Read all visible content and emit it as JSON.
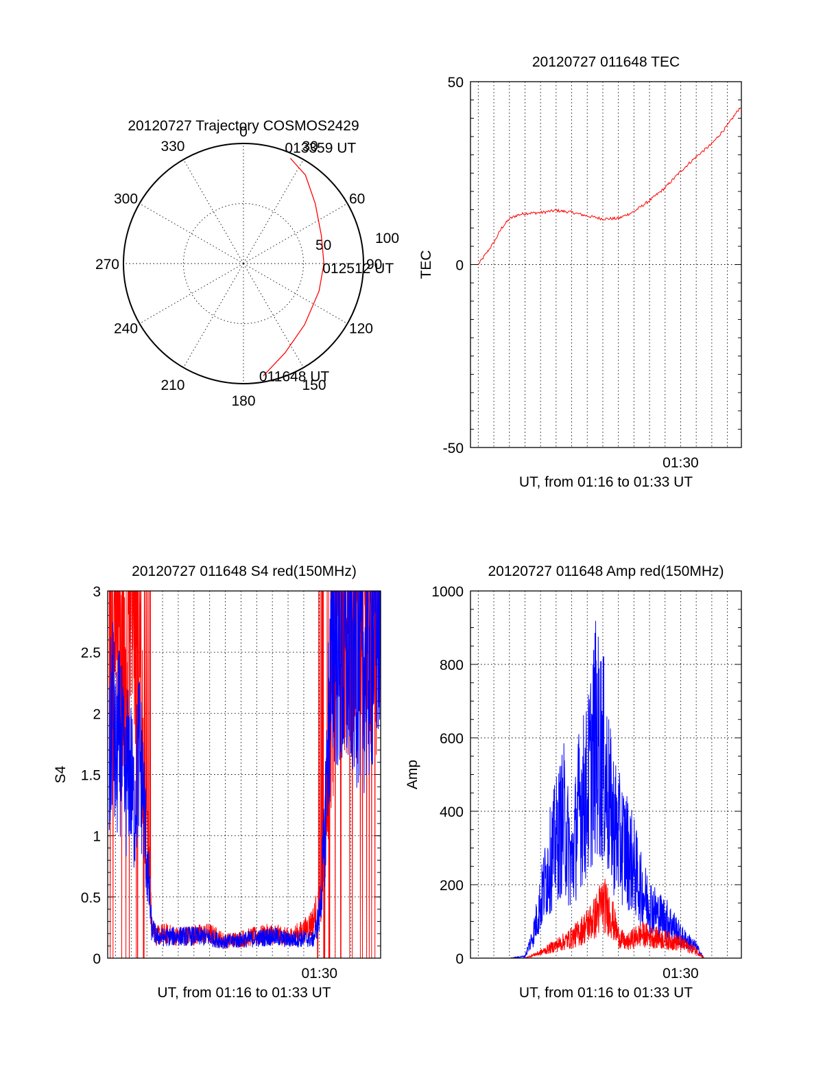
{
  "colors": {
    "red": "#ff0000",
    "blue": "#0000ff",
    "axis": "#000000"
  },
  "chart_data": [
    {
      "type": "polar",
      "title": "20120727 Trajectory COSMOS2429",
      "azimuth_labels": [
        "0",
        "30",
        "60",
        "90",
        "120",
        "150",
        "180",
        "210",
        "240",
        "270",
        "300",
        "330"
      ],
      "elevation_labels": [
        "50",
        "100"
      ],
      "grid": true,
      "series": [
        {
          "color": "#ff0000",
          "points": [
            {
              "az": 170,
              "r": 95
            },
            {
              "az": 155,
              "r": 82
            },
            {
              "az": 135,
              "r": 72
            },
            {
              "az": 110,
              "r": 67
            },
            {
              "az": 90,
              "r": 67
            },
            {
              "az": 70,
              "r": 69
            },
            {
              "az": 50,
              "r": 78
            },
            {
              "az": 35,
              "r": 90
            },
            {
              "az": 24,
              "r": 96
            }
          ]
        }
      ],
      "annotations": [
        {
          "text": "013359 UT",
          "az": 24,
          "r": 96
        },
        {
          "text": "012512 UT",
          "az": 90,
          "r": 67
        },
        {
          "text": "011648 UT",
          "az": 170,
          "r": 95
        }
      ]
    },
    {
      "type": "line",
      "title": "20120727 011648 TEC",
      "xlabel": "UT, from 01:16 to 01:33 UT",
      "ylabel": "TEC",
      "xlim": [
        16.5,
        33.9
      ],
      "ylim": [
        -50,
        50
      ],
      "yticks": [
        "50",
        "0",
        "-50"
      ],
      "xticks": [
        {
          "x": 30,
          "label": "01:30"
        }
      ],
      "grid": true,
      "series": [
        {
          "color": "#ff0000",
          "x": [
            17.0,
            17.5,
            18.0,
            18.5,
            19.0,
            19.5,
            20.0,
            21.0,
            22.0,
            23.0,
            24.0,
            25.0,
            26.0,
            27.0,
            28.0,
            29.0,
            30.0,
            31.0,
            32.0,
            33.0,
            33.9
          ],
          "y": [
            0,
            3,
            6,
            10,
            12.5,
            13.5,
            14,
            14.2,
            14.8,
            14.3,
            13.3,
            12.5,
            12.6,
            14.5,
            17.5,
            21,
            25.5,
            29.5,
            33,
            38,
            43.5
          ]
        }
      ]
    },
    {
      "type": "line",
      "title": "20120727 011648 S4 red(150MHz)",
      "xlabel": "UT, from 01:16 to 01:33 UT",
      "ylabel": "S4",
      "xlim": [
        16.5,
        33.9
      ],
      "ylim": [
        0,
        3
      ],
      "yticks": [
        "0",
        "0.5",
        "1",
        "1.5",
        "2",
        "2.5",
        "3"
      ],
      "xticks": [
        {
          "x": 30,
          "label": "01:30"
        }
      ],
      "grid": true,
      "series": [
        {
          "color": "#ff0000",
          "x": [
            16.6,
            16.8,
            17.0,
            17.3,
            17.6,
            17.9,
            18.2,
            18.5,
            18.8,
            19.0,
            19.3,
            19.6,
            20.0,
            21.0,
            22.0,
            23.0,
            24.0,
            25.0,
            26.0,
            27.0,
            28.0,
            29.0,
            29.6,
            30.0,
            30.3,
            30.6,
            31.0,
            31.5,
            32.0,
            33.0,
            33.9
          ],
          "y": [
            2.8,
            3.0,
            2.6,
            3.0,
            2.2,
            3.0,
            2.5,
            3.0,
            1.5,
            0.9,
            0.3,
            0.18,
            0.2,
            0.18,
            0.19,
            0.2,
            0.14,
            0.16,
            0.18,
            0.2,
            0.17,
            0.22,
            0.3,
            0.45,
            0.7,
            1.8,
            2.6,
            3.0,
            2.8,
            3.0,
            3.0
          ]
        },
        {
          "color": "#0000ff",
          "x": [
            16.6,
            16.8,
            17.0,
            17.3,
            17.6,
            17.9,
            18.2,
            18.5,
            18.8,
            19.0,
            19.3,
            19.6,
            20.0,
            21.0,
            22.0,
            23.0,
            24.0,
            25.0,
            26.0,
            27.0,
            28.0,
            29.0,
            29.6,
            30.0,
            30.3,
            30.6,
            31.0,
            31.5,
            32.0,
            33.0,
            33.9
          ],
          "y": [
            1.5,
            2.1,
            1.6,
            1.8,
            1.4,
            1.6,
            1.2,
            1.7,
            1.3,
            0.8,
            0.25,
            0.18,
            0.17,
            0.18,
            0.18,
            0.17,
            0.13,
            0.15,
            0.16,
            0.18,
            0.15,
            0.16,
            0.15,
            0.35,
            0.9,
            2.0,
            2.8,
            2.4,
            2.6,
            2.4,
            3.0
          ]
        }
      ]
    },
    {
      "type": "line",
      "title": "20120727 011648 Amp red(150MHz)",
      "xlabel": "UT, from 01:16 to 01:33 UT",
      "ylabel": "Amp",
      "xlim": [
        16.5,
        33.9
      ],
      "ylim": [
        0,
        1000
      ],
      "yticks": [
        "0",
        "200",
        "400",
        "600",
        "800",
        "1000"
      ],
      "xticks": [
        {
          "x": 30,
          "label": "01:30"
        }
      ],
      "grid": true,
      "series": [
        {
          "color": "#0000ff",
          "x": [
            16.5,
            19.0,
            20.0,
            20.5,
            21.0,
            21.5,
            22.0,
            22.5,
            23.0,
            23.5,
            24.0,
            24.5,
            25.0,
            25.5,
            26.0,
            26.5,
            27.0,
            27.5,
            28.0,
            28.5,
            29.0,
            29.5,
            30.0,
            30.5,
            31.0,
            31.5,
            33.9
          ],
          "y": [
            0,
            0,
            5,
            60,
            150,
            250,
            320,
            380,
            250,
            420,
            450,
            600,
            550,
            400,
            330,
            300,
            250,
            180,
            150,
            120,
            110,
            90,
            60,
            45,
            30,
            0,
            0
          ]
        },
        {
          "color": "#ff0000",
          "x": [
            16.5,
            20.0,
            20.5,
            21.0,
            21.5,
            22.0,
            22.5,
            23.0,
            23.5,
            24.0,
            24.5,
            25.0,
            25.5,
            26.0,
            26.5,
            27.0,
            27.5,
            28.0,
            28.5,
            29.0,
            29.5,
            30.0,
            30.5,
            31.0,
            31.5,
            33.9
          ],
          "y": [
            0,
            0,
            8,
            15,
            25,
            35,
            45,
            55,
            70,
            90,
            110,
            150,
            120,
            60,
            40,
            55,
            65,
            60,
            55,
            50,
            45,
            40,
            30,
            20,
            0,
            0
          ]
        }
      ]
    }
  ]
}
